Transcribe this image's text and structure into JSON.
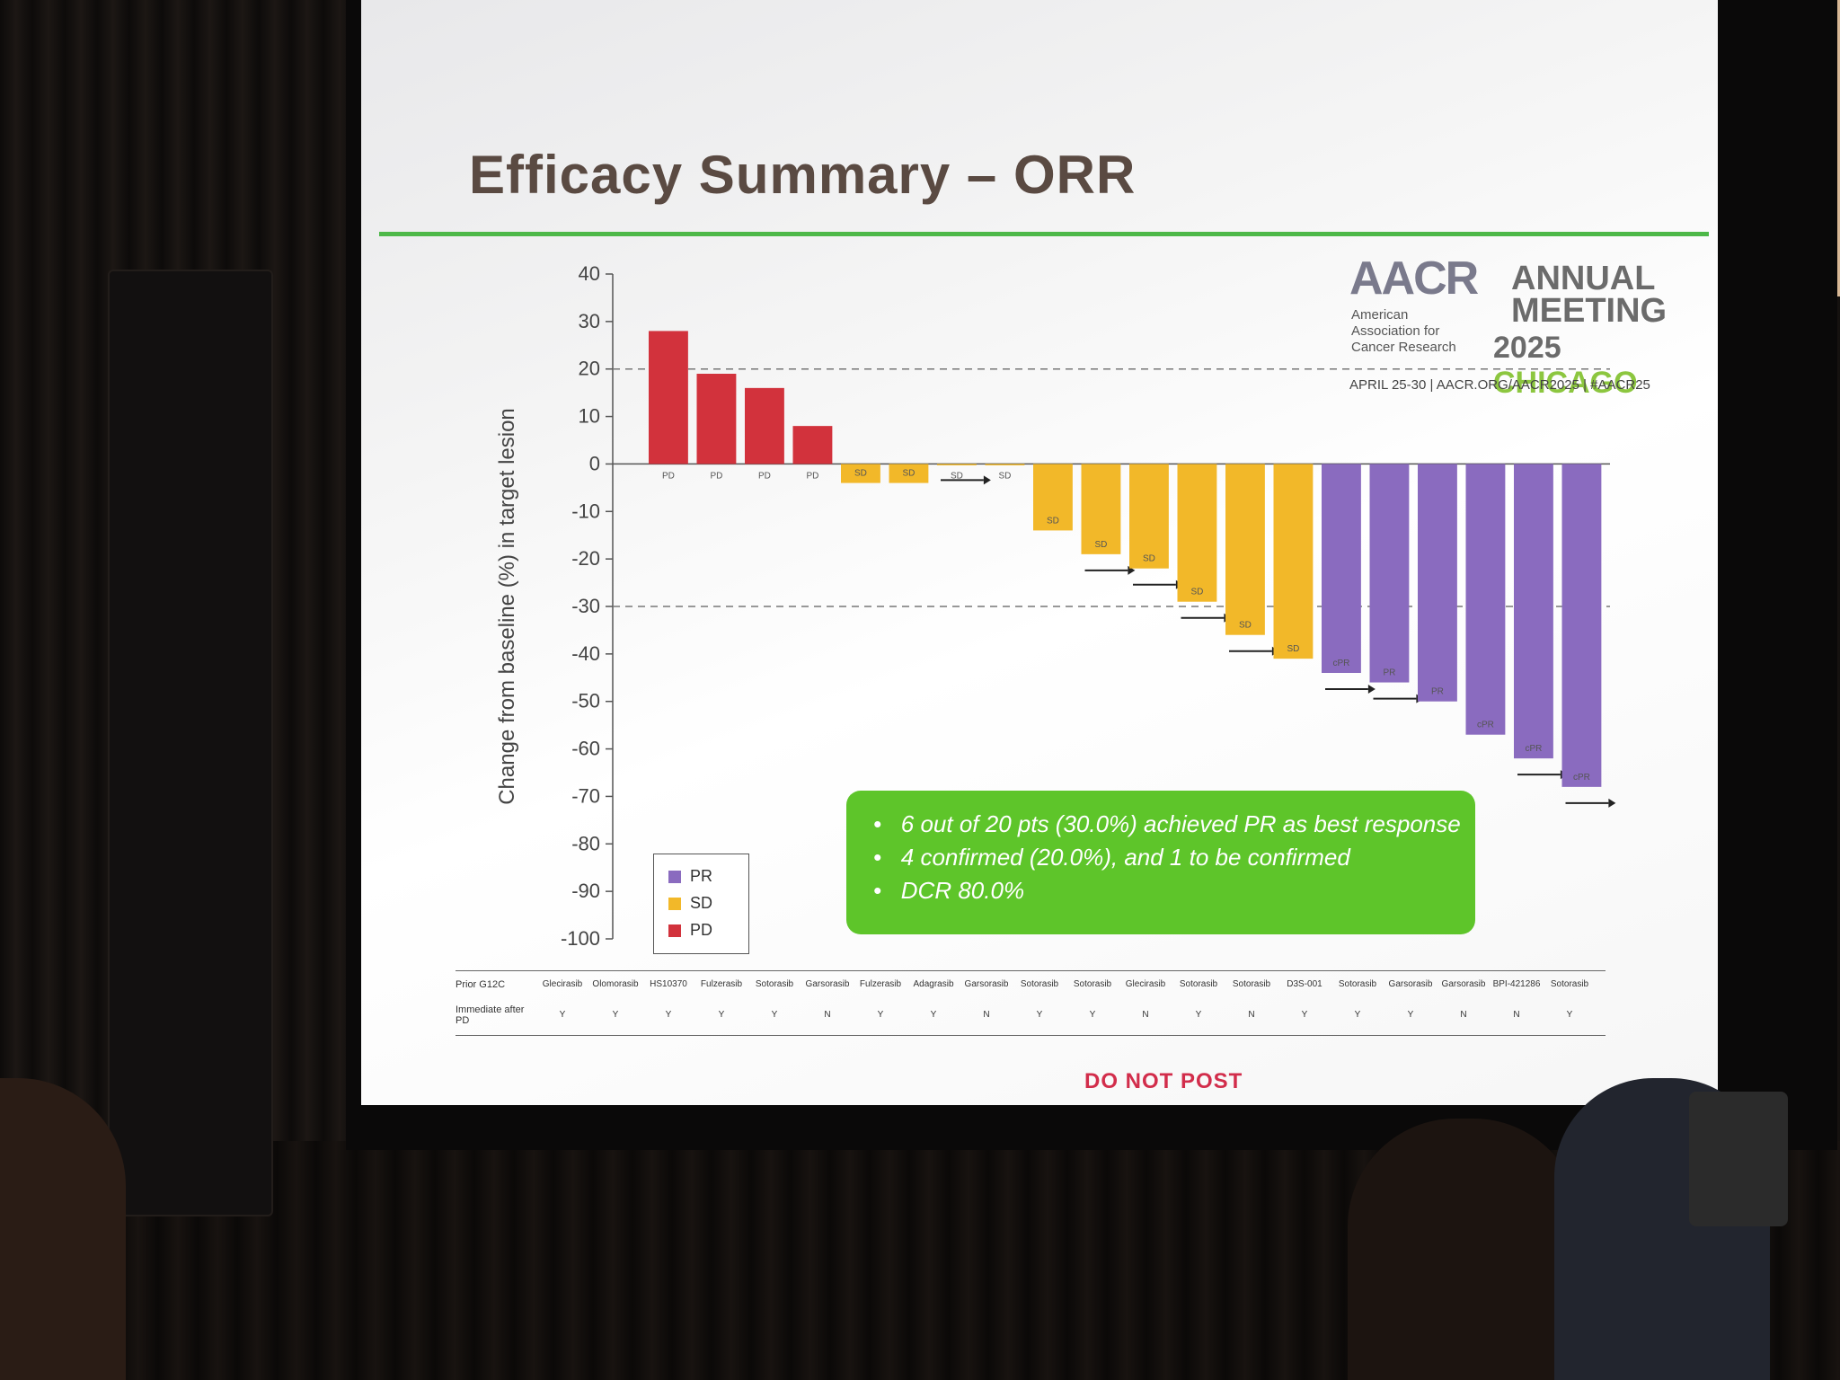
{
  "slide": {
    "title": "Efficacy Summary – ORR",
    "footer": "DO NOT POST"
  },
  "logo": {
    "org": "AACR",
    "org_full": "American Association for Cancer Research",
    "meeting_line1": "ANNUAL",
    "meeting_line2": "MEETING",
    "year": "2025",
    "city": "CHICAGO",
    "dates": "APRIL 25-30 | AACR.ORG/AACR2025 | #AACR25"
  },
  "callout": {
    "lines": [
      "6 out of 20 pts (30.0%) achieved PR as best response",
      "4 confirmed (20.0%), and 1 to be confirmed",
      "DCR 80.0%"
    ]
  },
  "legend": {
    "items": [
      {
        "label": "PR",
        "color": "#8a6bbf"
      },
      {
        "label": "SD",
        "color": "#f2b829"
      },
      {
        "label": "PD",
        "color": "#d2323c"
      }
    ]
  },
  "table": {
    "row1_header": "Prior G12C",
    "row2_header": "Immediate after PD",
    "prior_g12c": [
      "Glecirasib",
      "Olomorasib",
      "HS10370",
      "Fulzerasib",
      "Sotorasib",
      "Garsorasib",
      "Fulzerasib",
      "Adagrasib",
      "Garsorasib",
      "Sotorasib",
      "Sotorasib",
      "Glecirasib",
      "Sotorasib",
      "Sotorasib",
      "D3S-001",
      "Sotorasib",
      "Garsorasib",
      "Garsorasib",
      "BPI-421286",
      "Sotorasib"
    ],
    "immediate_after_pd": [
      "Y",
      "Y",
      "Y",
      "Y",
      "Y",
      "N",
      "Y",
      "Y",
      "N",
      "Y",
      "Y",
      "N",
      "Y",
      "N",
      "Y",
      "Y",
      "Y",
      "N",
      "N",
      "Y"
    ]
  },
  "chart_data": {
    "type": "bar",
    "title": "Efficacy Summary – ORR",
    "ylabel": "Change from baseline (%) in target lesion",
    "xlabel": "",
    "ylim": [
      -100,
      40
    ],
    "yticks": [
      40,
      30,
      20,
      10,
      0,
      -10,
      -20,
      -30,
      -40,
      -50,
      -60,
      -70,
      -80,
      -90,
      -100
    ],
    "reference_lines": [
      20,
      -30
    ],
    "colors": {
      "PR": "#8a6bbf",
      "SD": "#f2b829",
      "PD": "#d2323c"
    },
    "bars": [
      {
        "value": 28,
        "response": "PD"
      },
      {
        "value": 19,
        "response": "PD"
      },
      {
        "value": 16,
        "response": "PD"
      },
      {
        "value": 8,
        "response": "PD"
      },
      {
        "value": -4,
        "response": "SD"
      },
      {
        "value": -4,
        "response": "SD"
      },
      {
        "value": 0,
        "response": "SD",
        "ongoing": true
      },
      {
        "value": 0,
        "response": "SD"
      },
      {
        "value": -14,
        "response": "SD"
      },
      {
        "value": -19,
        "response": "SD",
        "ongoing": true
      },
      {
        "value": -22,
        "response": "SD",
        "ongoing": true
      },
      {
        "value": -29,
        "response": "SD",
        "ongoing": true
      },
      {
        "value": -36,
        "response": "SD",
        "ongoing": true
      },
      {
        "value": -41,
        "response": "SD"
      },
      {
        "value": -44,
        "response": "cPR",
        "ongoing": true
      },
      {
        "value": -46,
        "response": "PR",
        "ongoing": true
      },
      {
        "value": -50,
        "response": "PR"
      },
      {
        "value": -57,
        "response": "cPR"
      },
      {
        "value": -62,
        "response": "cPR",
        "ongoing": true
      },
      {
        "value": -68,
        "response": "cPR",
        "ongoing": true
      }
    ]
  }
}
